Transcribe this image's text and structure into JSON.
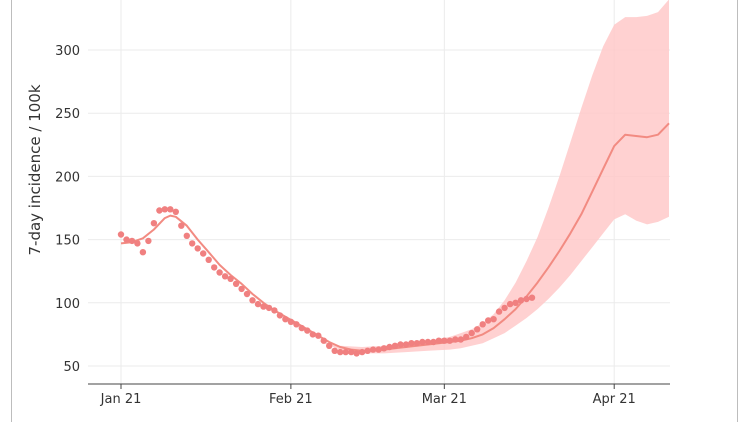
{
  "chart_data": {
    "type": "line",
    "ylabel": "7-day incidence / 100k",
    "xlabel": "",
    "title": "",
    "x_tick_labels": [
      "Jan 21",
      "Feb 21",
      "Mar 21",
      "Apr 21"
    ],
    "x_tick_days": [
      0,
      31,
      59,
      90
    ],
    "y_ticks": [
      50,
      100,
      150,
      200,
      250,
      300
    ],
    "ylim": [
      36,
      338
    ],
    "xlim": [
      -6,
      100
    ],
    "grid": true,
    "series": [
      {
        "kind": "points",
        "days": [
          0,
          1,
          2,
          3,
          4,
          5,
          6,
          7,
          8,
          9,
          10,
          11,
          12,
          13,
          14,
          15,
          16,
          17,
          18,
          19,
          20,
          21,
          22,
          23,
          24,
          25,
          26,
          27,
          28,
          29,
          30,
          31,
          32,
          33,
          34,
          35,
          36,
          37,
          38,
          39,
          40,
          41,
          42,
          43,
          44,
          45,
          46,
          47,
          48,
          49,
          50,
          51,
          52,
          53,
          54,
          55,
          56,
          57,
          58,
          59,
          60,
          61,
          62,
          63,
          64,
          65,
          66,
          67,
          68,
          69,
          70,
          71,
          72,
          73,
          74,
          75
        ],
        "values": [
          154,
          150,
          149,
          147,
          140,
          149,
          163,
          173,
          174,
          174,
          172,
          161,
          153,
          147,
          143,
          139,
          134,
          128,
          124,
          121,
          119,
          115,
          111,
          107,
          102,
          99,
          97,
          96,
          94,
          90,
          87,
          85,
          83,
          80,
          78,
          75,
          74,
          70,
          66,
          62,
          61,
          61,
          61,
          60,
          61,
          62,
          63,
          63,
          64,
          65,
          66,
          67,
          67,
          68,
          68,
          69,
          69,
          69,
          70,
          70,
          70,
          71,
          71,
          73,
          76,
          79,
          83,
          86,
          87,
          93,
          96,
          99,
          100,
          102,
          103,
          104
        ]
      },
      {
        "kind": "smooth",
        "days": [
          0,
          2,
          4,
          6,
          8,
          9,
          10,
          12,
          14,
          16,
          18,
          20,
          22,
          24,
          26,
          28,
          30,
          32,
          34,
          36,
          38,
          40,
          42,
          44,
          46,
          48,
          50,
          52,
          54,
          56,
          58,
          60,
          62,
          64,
          66,
          68,
          70,
          72,
          74,
          76,
          78,
          80,
          82,
          84,
          86,
          88,
          90,
          92,
          94,
          96,
          98,
          100
        ],
        "values": [
          147,
          148,
          151,
          158,
          167,
          169,
          168,
          161,
          150,
          140,
          130,
          122,
          115,
          107,
          100,
          94,
          89,
          84,
          79,
          74,
          69,
          65,
          63,
          62,
          62,
          63,
          64,
          65,
          66,
          67,
          68,
          69,
          70,
          72,
          75,
          80,
          87,
          95,
          105,
          116,
          128,
          141,
          155,
          170,
          188,
          206,
          224,
          233,
          232,
          231,
          233,
          242
        ]
      },
      {
        "kind": "band",
        "days": [
          36,
          40,
          44,
          48,
          52,
          56,
          60,
          62,
          64,
          66,
          68,
          70,
          72,
          74,
          76,
          78,
          80,
          82,
          84,
          86,
          88,
          90,
          92,
          94,
          96,
          98,
          100
        ],
        "upper": [
          70,
          66,
          65,
          66,
          67,
          70,
          73,
          76,
          79,
          84,
          91,
          102,
          116,
          133,
          152,
          175,
          200,
          227,
          254,
          280,
          303,
          320,
          326,
          326,
          327,
          330,
          340
        ],
        "lower": [
          70,
          63,
          60,
          60,
          61,
          62,
          63,
          64,
          66,
          68,
          72,
          76,
          82,
          88,
          95,
          103,
          112,
          122,
          133,
          144,
          155,
          166,
          170,
          165,
          162,
          164,
          168
        ]
      }
    ],
    "colors": {
      "line": "#f28b82",
      "points": "#f08080",
      "band": "#ffc9c9",
      "grid": "#ebebeb",
      "axis": "#444444"
    }
  }
}
